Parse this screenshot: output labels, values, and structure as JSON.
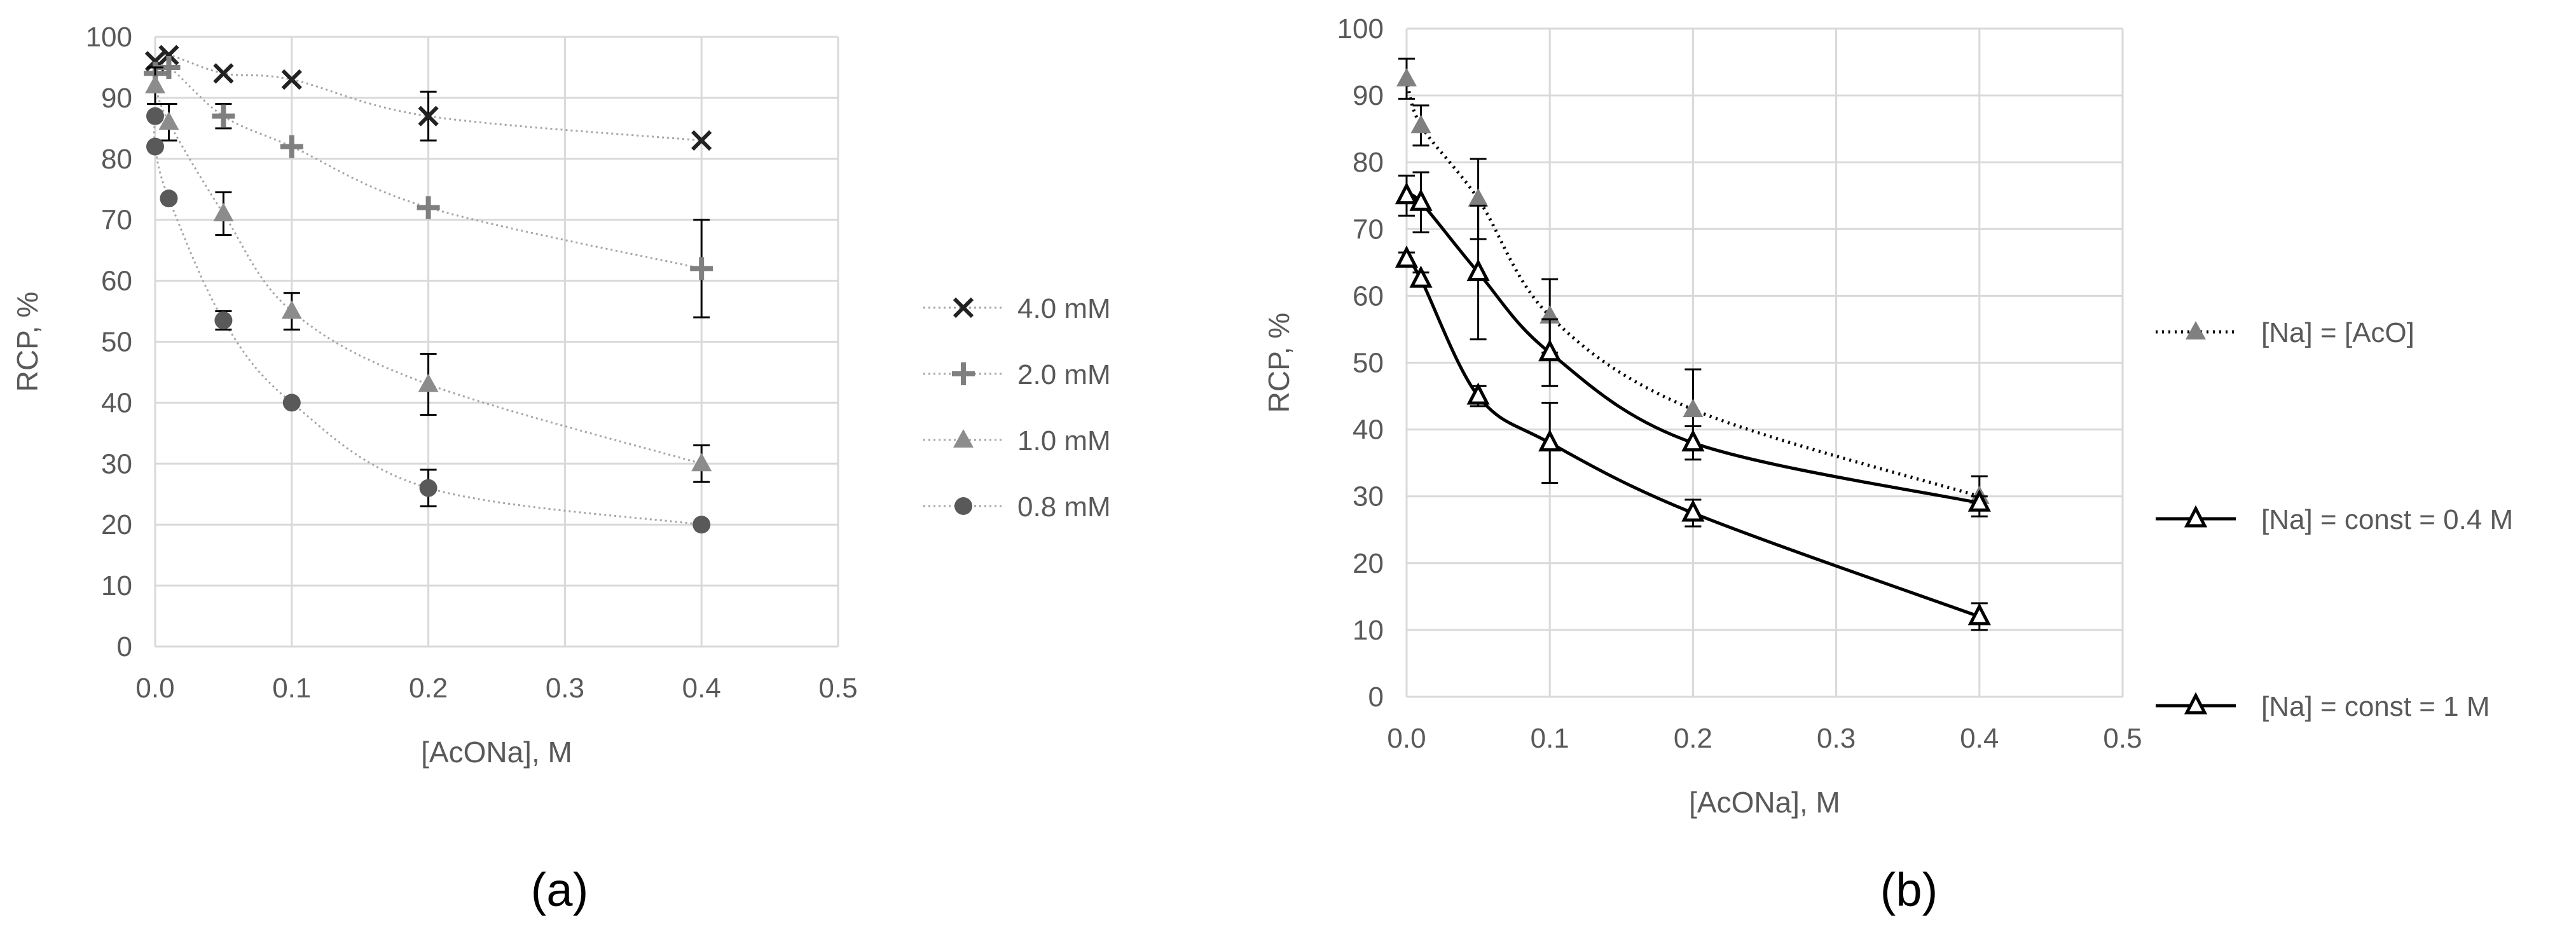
{
  "chart_data": [
    {
      "type": "scatter",
      "title": "",
      "panel_label": "(a)",
      "xlabel": "[AcONa], M",
      "ylabel": "RCP, %",
      "xlim": [
        0,
        0.5
      ],
      "ylim": [
        0,
        100
      ],
      "x_ticks": [
        0,
        0.1,
        0.2,
        0.3,
        0.4,
        0.5
      ],
      "x_tick_labels": [
        "0.0",
        "0.1",
        "0.2",
        "0.3",
        "0.4",
        "0.5"
      ],
      "y_ticks": [
        0,
        10,
        20,
        30,
        40,
        50,
        60,
        70,
        80,
        90,
        100
      ],
      "y_tick_labels": [
        "0",
        "10",
        "20",
        "30",
        "40",
        "50",
        "60",
        "70",
        "80",
        "90",
        "100"
      ],
      "grid": true,
      "legend_position": "right",
      "series": [
        {
          "name": "4.0 mM",
          "marker": "x",
          "color": "#222222",
          "line": "dotted-trend",
          "x": [
            0,
            0.01,
            0.05,
            0.1,
            0.2,
            0.4
          ],
          "y": [
            96,
            97,
            94,
            93,
            87,
            83
          ],
          "err": [
            0,
            0,
            0,
            0,
            4,
            0
          ]
        },
        {
          "name": "2.0 mM",
          "marker": "plus",
          "color": "#7f7f7f",
          "line": "dotted-trend",
          "x": [
            0,
            0.01,
            0.05,
            0.1,
            0.2,
            0.4
          ],
          "y": [
            94,
            95,
            87,
            82,
            72,
            62
          ],
          "err": [
            0,
            0,
            2,
            0,
            0,
            8
          ]
        },
        {
          "name": "1.0 mM",
          "marker": "triangle",
          "color": "#8c8c8c",
          "line": "dotted-trend",
          "x": [
            0,
            0.01,
            0.05,
            0.1,
            0.2,
            0.4
          ],
          "y": [
            92,
            86,
            71,
            55,
            43,
            30
          ],
          "err": [
            3,
            3,
            3.5,
            3,
            5,
            3
          ]
        },
        {
          "name": "0.8 mM",
          "marker": "circle",
          "color": "#595959",
          "line": "dotted-trend",
          "x": [
            0,
            0,
            0.01,
            0.05,
            0.1,
            0.2,
            0.4
          ],
          "y": [
            87,
            82,
            73.5,
            53.5,
            40,
            26,
            20
          ],
          "err": [
            0,
            0,
            0,
            1.5,
            0,
            3,
            0
          ]
        }
      ]
    },
    {
      "type": "line",
      "title": "",
      "panel_label": "(b)",
      "xlabel": "[AcONa], M",
      "ylabel": "RCP, %",
      "xlim": [
        0,
        0.5
      ],
      "ylim": [
        0,
        100
      ],
      "x_ticks": [
        0,
        0.1,
        0.2,
        0.3,
        0.4,
        0.5
      ],
      "x_tick_labels": [
        "0.0",
        "0.1",
        "0.2",
        "0.3",
        "0.4",
        "0.5"
      ],
      "y_ticks": [
        0,
        10,
        20,
        30,
        40,
        50,
        60,
        70,
        80,
        90,
        100
      ],
      "y_tick_labels": [
        "0",
        "10",
        "20",
        "30",
        "40",
        "50",
        "60",
        "70",
        "80",
        "90",
        "100"
      ],
      "grid": true,
      "legend_position": "right",
      "series": [
        {
          "name": "[Na] = [AcO]",
          "marker": "triangle-filled",
          "color": "#808080",
          "line": "dotted",
          "x": [
            0,
            0.01,
            0.05,
            0.1,
            0.2,
            0.4
          ],
          "y": [
            92.5,
            85.5,
            74.5,
            57,
            43,
            30
          ],
          "err": [
            3,
            3,
            6,
            5.5,
            6,
            3
          ]
        },
        {
          "name": "[Na] = const = 0.4 M",
          "marker": "triangle-open",
          "color": "#000000",
          "line": "solid",
          "x": [
            0,
            0.01,
            0.05,
            0.1,
            0.2,
            0.4
          ],
          "y": [
            75,
            74,
            63.5,
            51.5,
            38,
            29
          ],
          "err": [
            3,
            4.5,
            10,
            5,
            2.5,
            1
          ]
        },
        {
          "name": "[Na] = const = 1 M",
          "marker": "triangle-open",
          "color": "#000000",
          "line": "solid",
          "x": [
            0,
            0.01,
            0.05,
            0.1,
            0.2,
            0.4
          ],
          "y": [
            65.5,
            62.5,
            45,
            38,
            27.5,
            12
          ],
          "err": [
            1,
            1,
            1.5,
            6,
            2,
            2
          ]
        }
      ]
    }
  ]
}
